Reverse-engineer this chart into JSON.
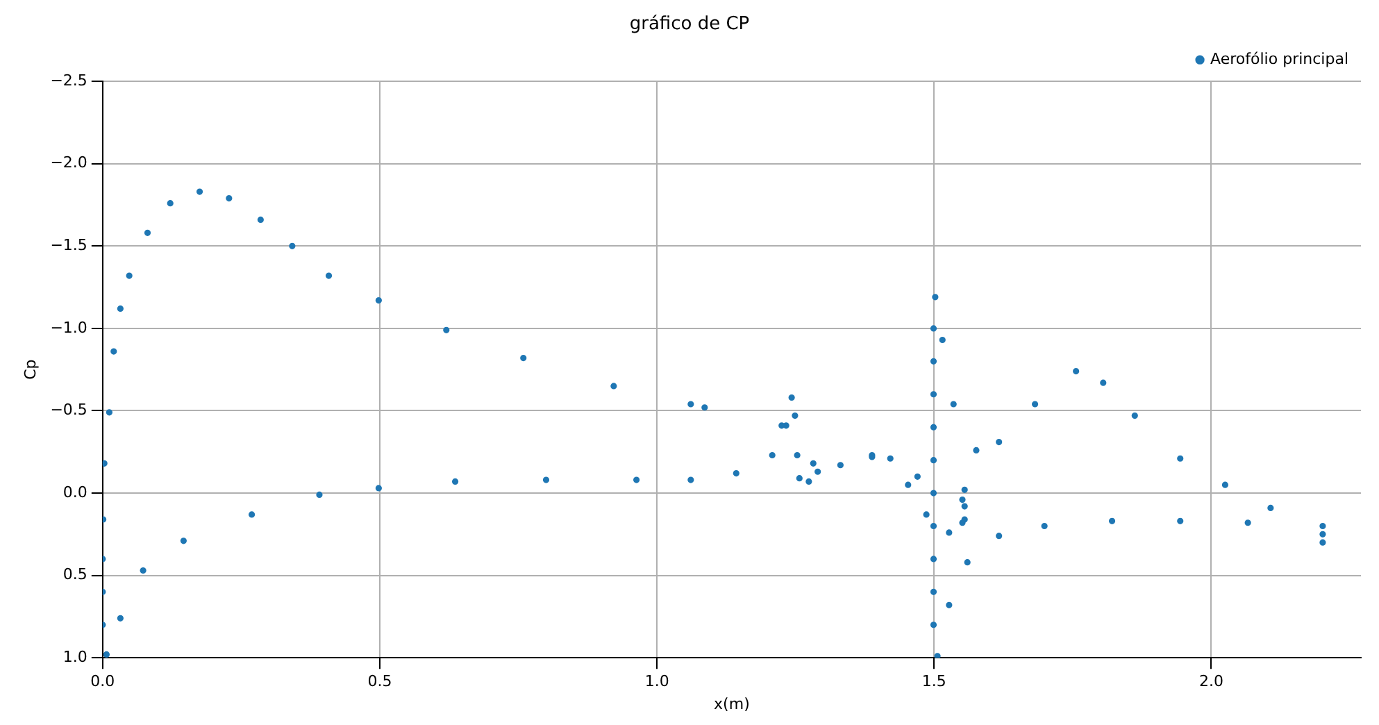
{
  "chart_data": {
    "type": "scatter",
    "title": "gráfico de CP",
    "xlabel": "x(m)",
    "ylabel": "Cp",
    "xlim": [
      0,
      2.27
    ],
    "xticks": [
      {
        "value": 0,
        "label": "0.0"
      },
      {
        "value": 0.5,
        "label": "0.5"
      },
      {
        "value": 1,
        "label": "1.0"
      },
      {
        "value": 1.5,
        "label": "1.5"
      },
      {
        "value": 2,
        "label": "2.0"
      }
    ],
    "ylim": [
      1.0,
      -2.5
    ],
    "yticks": [
      {
        "value": -2.5,
        "label": "−2.5"
      },
      {
        "value": -2,
        "label": "−2.0"
      },
      {
        "value": -1.5,
        "label": "−1.5"
      },
      {
        "value": -1,
        "label": "−1.0"
      },
      {
        "value": -0.5,
        "label": "−0.5"
      },
      {
        "value": 0,
        "label": "0.0"
      },
      {
        "value": 0.5,
        "label": "0.5"
      },
      {
        "value": 1,
        "label": "1.0"
      }
    ],
    "grid": true,
    "legend": "top right",
    "marker": "circle",
    "series": [
      {
        "name": "Aerofólio principal",
        "color": "#1f77b4",
        "x": [
          0.0,
          0.0,
          0.0,
          0.001,
          0.003,
          0.012,
          0.02,
          0.032,
          0.048,
          0.081,
          0.122,
          0.175,
          0.228,
          0.285,
          0.342,
          0.408,
          0.498,
          0.62,
          0.759,
          0.922,
          1.061,
          1.086,
          1.225,
          1.388,
          1.47,
          1.551,
          1.555,
          1.555,
          0.007,
          0.032,
          0.073,
          0.146,
          0.269,
          0.391,
          0.498,
          0.636,
          0.8,
          0.963,
          1.061,
          1.143,
          1.208,
          1.233,
          1.243,
          1.249,
          1.253,
          1.257,
          1.274,
          1.282,
          1.29,
          1.331,
          1.388,
          1.421,
          1.453,
          1.486,
          1.527,
          1.551,
          1.555,
          1.499,
          1.499,
          1.499,
          1.499,
          1.499,
          1.499,
          1.499,
          1.499,
          1.499,
          1.499,
          1.502,
          1.515,
          1.535,
          1.576,
          1.617,
          1.682,
          1.756,
          1.805,
          1.862,
          1.944,
          2.025,
          2.107,
          2.201,
          2.201,
          2.201,
          1.506,
          1.527,
          1.56,
          1.617,
          1.699,
          1.821,
          1.944,
          2.066
        ],
        "values": [
          0.8,
          0.6,
          0.4,
          0.16,
          -0.18,
          -0.49,
          -0.86,
          -1.12,
          -1.32,
          -1.58,
          -1.76,
          -1.83,
          -1.79,
          -1.66,
          -1.5,
          -1.32,
          -1.17,
          -0.99,
          -0.82,
          -0.65,
          -0.54,
          -0.52,
          -0.41,
          -0.23,
          -0.1,
          0.04,
          -0.02,
          0.08,
          0.98,
          0.76,
          0.47,
          0.29,
          0.13,
          0.01,
          -0.03,
          -0.07,
          -0.08,
          -0.08,
          -0.08,
          -0.12,
          -0.23,
          -0.41,
          -0.58,
          -0.47,
          -0.23,
          -0.09,
          -0.07,
          -0.18,
          -0.13,
          -0.17,
          -0.22,
          -0.21,
          -0.05,
          0.13,
          0.24,
          0.18,
          0.16,
          0.8,
          0.6,
          0.4,
          0.2,
          0.0,
          -0.2,
          -0.4,
          -0.6,
          -0.8,
          -1.0,
          -1.19,
          -0.93,
          -0.54,
          -0.26,
          -0.31,
          -0.54,
          -0.74,
          -0.67,
          -0.47,
          -0.21,
          -0.05,
          0.09,
          0.25,
          0.2,
          0.3,
          0.99,
          0.68,
          0.42,
          0.26,
          0.2,
          0.17,
          0.17,
          0.18
        ]
      }
    ]
  }
}
